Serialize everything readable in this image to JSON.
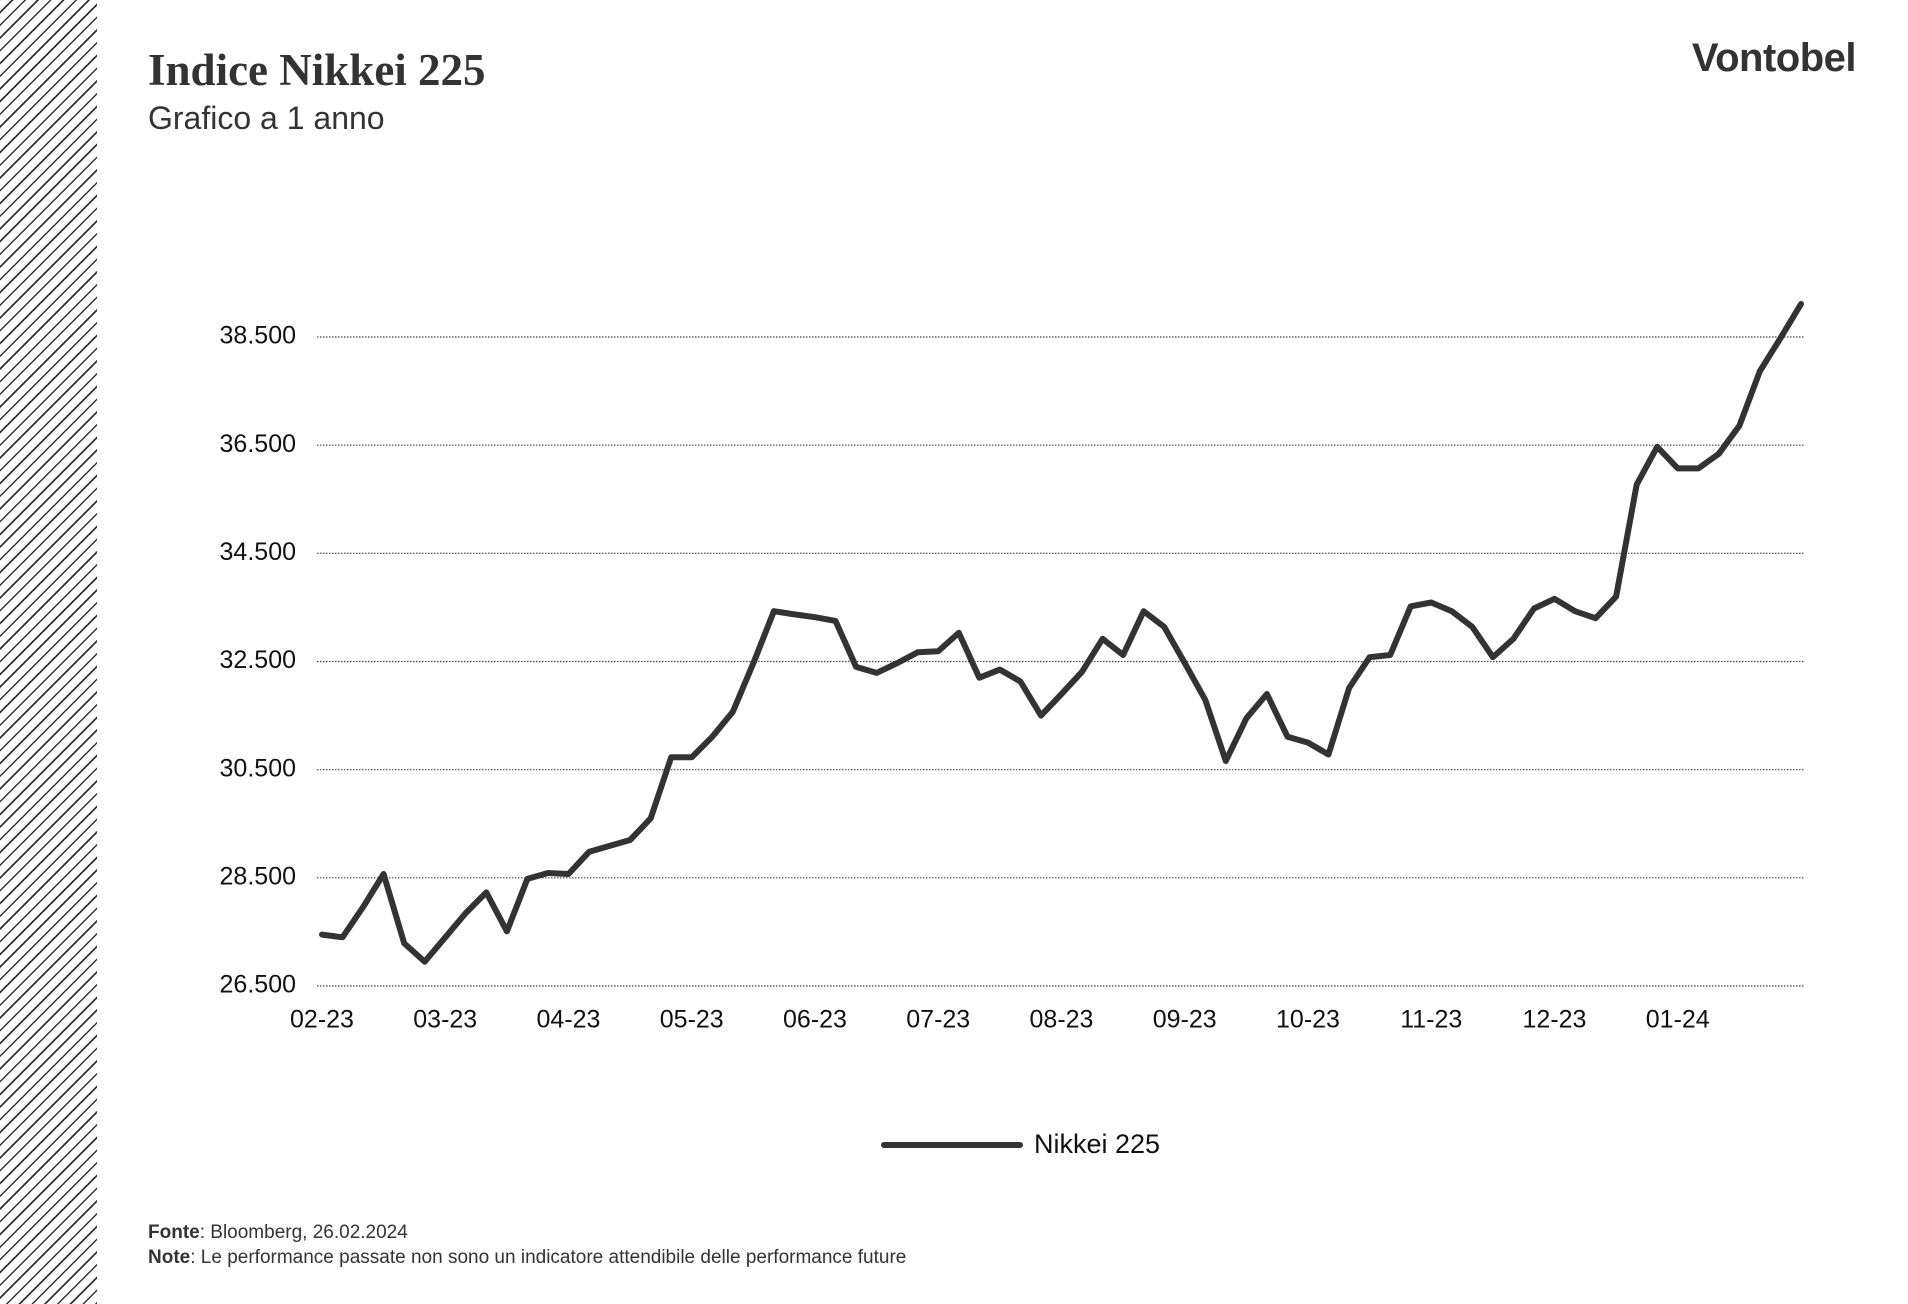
{
  "chart_data": {
    "type": "line",
    "title": "Indice Nikkei 225",
    "subtitle": "Grafico a 1 anno",
    "brand": "Vontobel",
    "categories": [
      "02-23",
      null,
      null,
      null,
      null,
      null,
      "03-23",
      null,
      null,
      null,
      null,
      null,
      "04-23",
      null,
      null,
      null,
      null,
      null,
      "05-23",
      null,
      null,
      null,
      null,
      null,
      "06-23",
      null,
      null,
      null,
      null,
      null,
      "07-23",
      null,
      null,
      null,
      null,
      null,
      "08-23",
      null,
      null,
      null,
      null,
      null,
      "09-23",
      null,
      null,
      null,
      null,
      null,
      "10-23",
      null,
      null,
      null,
      null,
      null,
      "11-23",
      null,
      null,
      null,
      null,
      null,
      "12-23",
      null,
      null,
      null,
      null,
      null,
      "01-24",
      null,
      null,
      null,
      null,
      null,
      null
    ],
    "series": [
      {
        "name": "Nikkei 225",
        "color": "#333333",
        "values": [
          27450,
          27400,
          27960,
          28570,
          27290,
          26950,
          27400,
          27850,
          28230,
          27510,
          28480,
          28590,
          28570,
          28980,
          29090,
          29200,
          29600,
          30730,
          30730,
          31110,
          31570,
          32470,
          33430,
          33370,
          33320,
          33250,
          32400,
          32290,
          32470,
          32670,
          32690,
          33030,
          32200,
          32350,
          32130,
          31500,
          31900,
          32310,
          32920,
          32620,
          33430,
          33140,
          32470,
          31790,
          30660,
          31450,
          31900,
          31110,
          31000,
          30780,
          32010,
          32580,
          32620,
          33520,
          33590,
          33430,
          33140,
          32580,
          32920,
          33480,
          33660,
          33430,
          33300,
          33700,
          35770,
          36470,
          36070,
          36070,
          36340,
          36860,
          37870,
          38480,
          39110
        ]
      }
    ],
    "ylim": [
      26500,
      38500
    ],
    "yticks": [
      {
        "value": 26500,
        "label": "26.500"
      },
      {
        "value": 28500,
        "label": "28.500"
      },
      {
        "value": 30500,
        "label": "30.500"
      },
      {
        "value": 32500,
        "label": "32.500"
      },
      {
        "value": 34500,
        "label": "34.500"
      },
      {
        "value": 36500,
        "label": "36.500"
      },
      {
        "value": 38500,
        "label": "38.500"
      }
    ],
    "grid": true
  },
  "footer": {
    "source_label": "Fonte",
    "source": ": Bloomberg, 26.02.2024",
    "note_label": "Note",
    "note": ": Le performance passate non sono un indicatore attendibile delle performance future"
  }
}
